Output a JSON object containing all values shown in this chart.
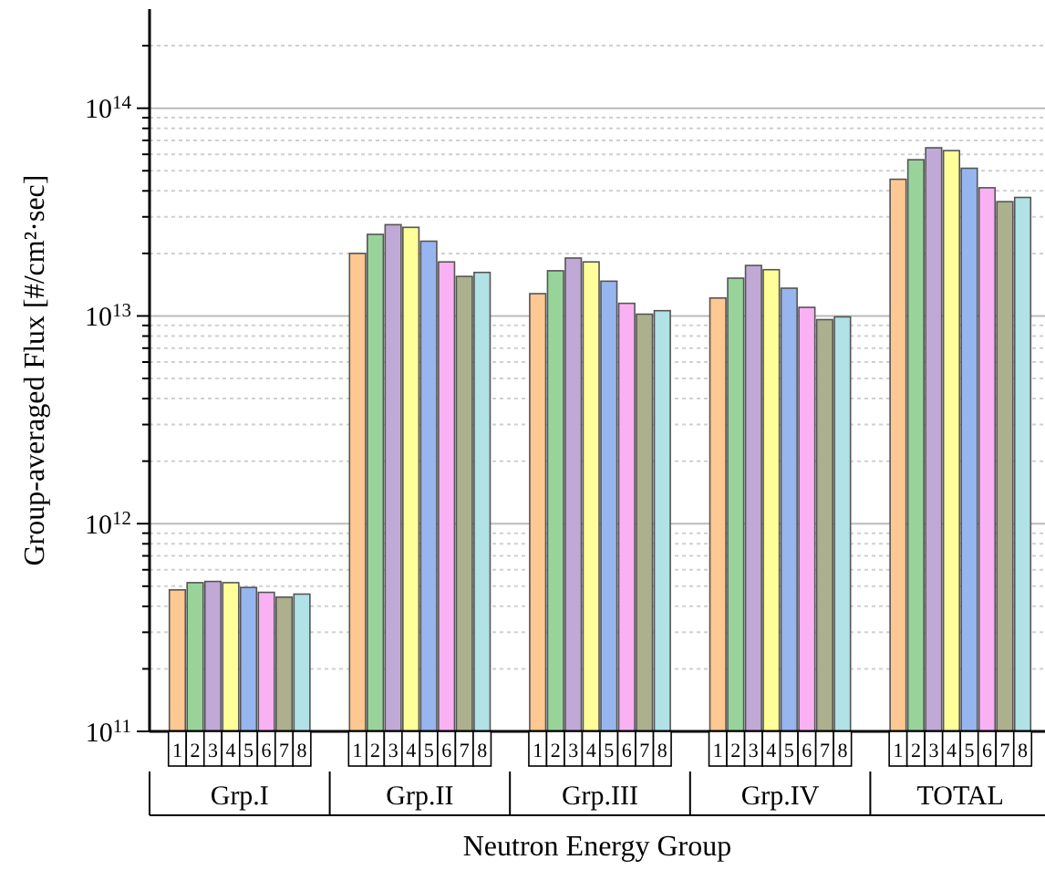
{
  "chart_data": {
    "type": "bar",
    "xlabel": "Neutron Energy Group",
    "ylabel": "Group-averaged Flux [#/cm²·sec]",
    "categories": [
      "Grp.I",
      "Grp.II",
      "Grp.III",
      "Grp.IV",
      "TOTAL"
    ],
    "series": [
      {
        "name": "1",
        "color": "#fdc891",
        "values": [
          480000000000.0,
          20000000000000.0,
          12800000000000.0,
          12200000000000.0,
          45500000000000.0
        ]
      },
      {
        "name": "2",
        "color": "#98d49a",
        "values": [
          520000000000.0,
          24700000000000.0,
          16500000000000.0,
          15200000000000.0,
          56500000000000.0
        ]
      },
      {
        "name": "3",
        "color": "#c0a9d6",
        "values": [
          527000000000.0,
          27500000000000.0,
          19000000000000.0,
          17500000000000.0,
          64500000000000.0
        ]
      },
      {
        "name": "4",
        "color": "#ffff99",
        "values": [
          520000000000.0,
          26700000000000.0,
          18200000000000.0,
          16700000000000.0,
          62500000000000.0
        ]
      },
      {
        "name": "5",
        "color": "#97b5ef",
        "values": [
          493000000000.0,
          22900000000000.0,
          14700000000000.0,
          13600000000000.0,
          51400000000000.0
        ]
      },
      {
        "name": "6",
        "color": "#f9b1f3",
        "values": [
          467000000000.0,
          18200000000000.0,
          11500000000000.0,
          11000000000000.0,
          41400000000000.0
        ]
      },
      {
        "name": "7",
        "color": "#adb08c",
        "values": [
          443000000000.0,
          15500000000000.0,
          10200000000000.0,
          9600000000000.0,
          35500000000000.0
        ]
      },
      {
        "name": "8",
        "color": "#b0e2e6",
        "values": [
          458000000000.0,
          16200000000000.0,
          10600000000000.0,
          9900000000000.0,
          37200000000000.0
        ]
      }
    ],
    "log": true,
    "ylim": [
      100000000000.0,
      300000000000000.0
    ],
    "yticks": [
      {
        "value": 100000000000.0,
        "label": "10$^{11}$"
      },
      {
        "value": 200000000000.0,
        "label": null
      },
      {
        "value": 300000000000.0,
        "label": null
      },
      {
        "value": 400000000000.0,
        "label": null
      },
      {
        "value": 500000000000.0,
        "label": null
      },
      {
        "value": 600000000000.0,
        "label": null
      },
      {
        "value": 700000000000.0,
        "label": null
      },
      {
        "value": 800000000000.0,
        "label": null
      },
      {
        "value": 900000000000.0,
        "label": null
      },
      {
        "value": 1000000000000.0,
        "label": "10$^{12}$"
      },
      {
        "value": 2000000000000.0,
        "label": null
      },
      {
        "value": 3000000000000.0,
        "label": null
      },
      {
        "value": 4000000000000.0,
        "label": null
      },
      {
        "value": 5000000000000.0,
        "label": null
      },
      {
        "value": 6000000000000.0,
        "label": null
      },
      {
        "value": 7000000000000.0,
        "label": null
      },
      {
        "value": 8000000000000.0,
        "label": null
      },
      {
        "value": 9000000000000.0,
        "label": null
      },
      {
        "value": 10000000000000.0,
        "label": "10$^{13}$"
      },
      {
        "value": 20000000000000.0,
        "label": null
      },
      {
        "value": 30000000000000.0,
        "label": null
      },
      {
        "value": 40000000000000.0,
        "label": null
      },
      {
        "value": 50000000000000.0,
        "label": null
      },
      {
        "value": 60000000000000.0,
        "label": null
      },
      {
        "value": 70000000000000.0,
        "label": null
      },
      {
        "value": 80000000000000.0,
        "label": null
      },
      {
        "value": 90000000000000.0,
        "label": null
      },
      {
        "value": 100000000000000.0,
        "label": "10$^{14}$"
      },
      {
        "value": 200000000000000.0,
        "label": null
      }
    ],
    "grid": true
  }
}
